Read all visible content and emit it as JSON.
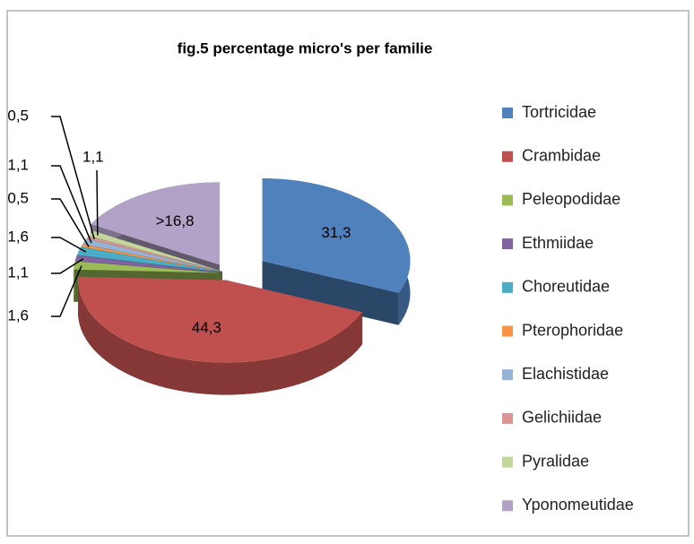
{
  "chart_data": {
    "type": "pie3d",
    "title": "fig.5  percentage micro's per familie",
    "categories": [
      "Tortricidae",
      "Crambidae",
      "Peleopodidae",
      "Ethmiidae",
      "Choreutidae",
      "Pterophoridae",
      "Elachistidae",
      "Gelichiidae",
      "Pyralidae",
      "Yponomeutidae"
    ],
    "values": [
      31.3,
      44.3,
      1.6,
      1.1,
      1.6,
      0.5,
      1.1,
      0.5,
      1.1,
      16.8
    ],
    "value_labels": [
      "31,3",
      "44,3",
      "1,6",
      "1,1",
      "1,6",
      "0,5",
      "1,1",
      "0,5",
      "1,1",
      ">16,8"
    ],
    "colors": [
      "#4f81bd",
      "#c0504d",
      "#9bbb59",
      "#8064a2",
      "#4bacc6",
      "#f79646",
      "#95b3d7",
      "#d99694",
      "#c3d69b",
      "#b3a2c7"
    ],
    "legend": "right"
  }
}
